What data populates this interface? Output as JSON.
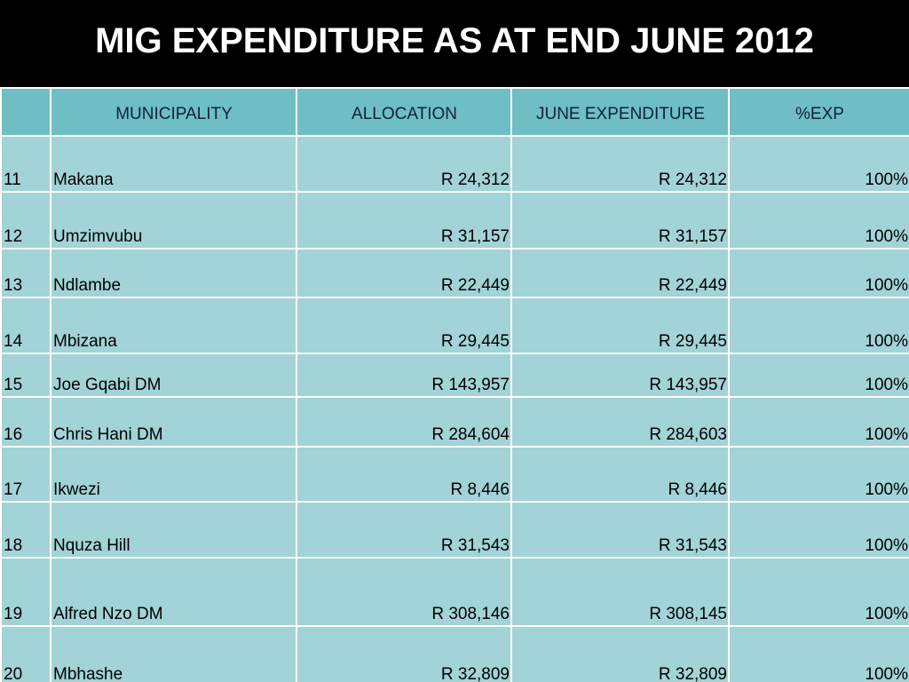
{
  "title": "MIG EXPENDITURE AS AT END JUNE 2012",
  "table": {
    "headers": [
      "",
      "MUNICIPALITY",
      "ALLOCATION",
      "JUNE EXPENDITURE",
      "%EXP"
    ],
    "rows": [
      {
        "num": "11",
        "municipality": "Makana",
        "allocation": "R 24,312",
        "expenditure": "R 24,312",
        "pct": "100%"
      },
      {
        "num": "12",
        "municipality": "Umzimvubu",
        "allocation": "R 31,157",
        "expenditure": "R 31,157",
        "pct": "100%"
      },
      {
        "num": "13",
        "municipality": "Ndlambe",
        "allocation": "R 22,449",
        "expenditure": "R 22,449",
        "pct": "100%"
      },
      {
        "num": "14",
        "municipality": "Mbizana",
        "allocation": "R 29,445",
        "expenditure": "R 29,445",
        "pct": "100%"
      },
      {
        "num": "15",
        "municipality": "Joe Gqabi DM",
        "allocation": "R 143,957",
        "expenditure": "R 143,957",
        "pct": "100%"
      },
      {
        "num": "16",
        "municipality": "Chris Hani DM",
        "allocation": "R 284,604",
        "expenditure": "R 284,603",
        "pct": "100%"
      },
      {
        "num": "17",
        "municipality": "Ikwezi",
        "allocation": "R 8,446",
        "expenditure": "R 8,446",
        "pct": "100%"
      },
      {
        "num": "18",
        "municipality": "Nquza Hill",
        "allocation": "R 31,543",
        "expenditure": "R 31,543",
        "pct": "100%"
      },
      {
        "num": "19",
        "municipality": "Alfred Nzo DM",
        "allocation": "R 308,146",
        "expenditure": "R 308,145",
        "pct": "100%"
      },
      {
        "num": "20",
        "municipality": "Mbhashe",
        "allocation": "R 32,809",
        "expenditure": "R 32,809",
        "pct": "100%"
      }
    ]
  },
  "colors": {
    "title_background": "#000000",
    "title_text": "#ffffff",
    "header_background": "#6fbec4",
    "header_text": "#10203a",
    "row_background": "#a2d3d6",
    "grid_lines": "#ffffff"
  }
}
